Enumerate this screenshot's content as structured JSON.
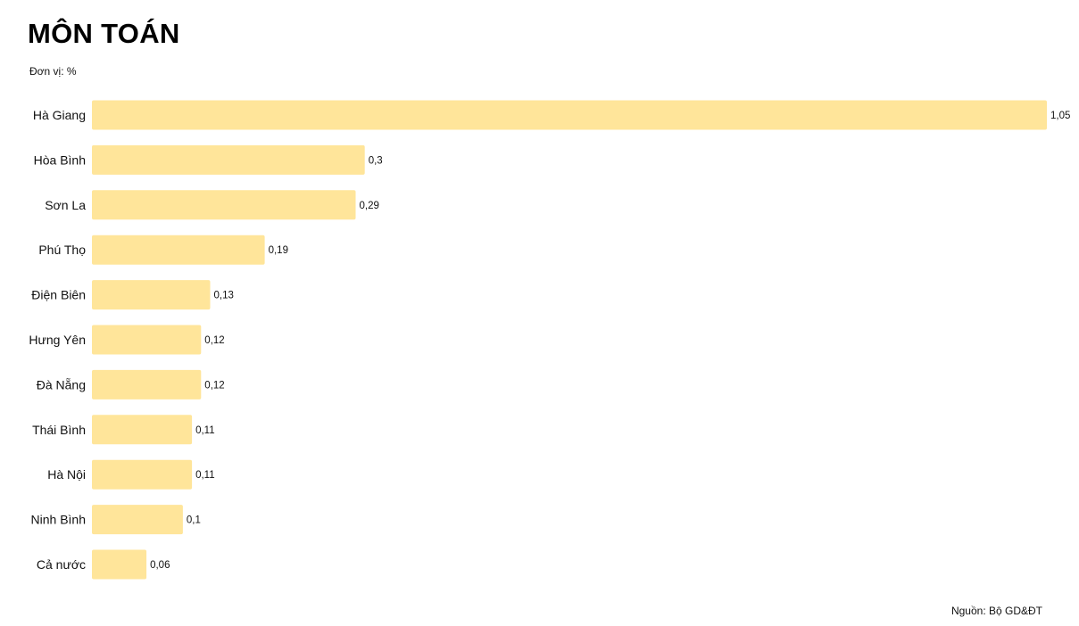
{
  "chart_data": {
    "type": "bar",
    "orientation": "horizontal",
    "title": "MÔN TOÁN",
    "subtitle": "Đơn vị: %",
    "source": "Nguồn: Bộ GD&ĐT",
    "categories": [
      "Hà Giang",
      "Hòa Bình",
      "Sơn La",
      "Phú Thọ",
      "Điện Biên",
      "Hưng Yên",
      "Đà Nẵng",
      "Thái Bình",
      "Hà Nội",
      "Ninh Bình",
      "Cả nước"
    ],
    "values": [
      1.05,
      0.3,
      0.29,
      0.19,
      0.13,
      0.12,
      0.12,
      0.11,
      0.11,
      0.1,
      0.06
    ],
    "value_labels": [
      "1,05",
      "0,3",
      "0,29",
      "0,19",
      "0,13",
      "0,12",
      "0,12",
      "0,11",
      "0,11",
      "0,1",
      "0,06"
    ],
    "xlim": [
      0,
      1.05
    ],
    "bar_color": "#FFE59A",
    "grid": false,
    "legend": "none"
  }
}
